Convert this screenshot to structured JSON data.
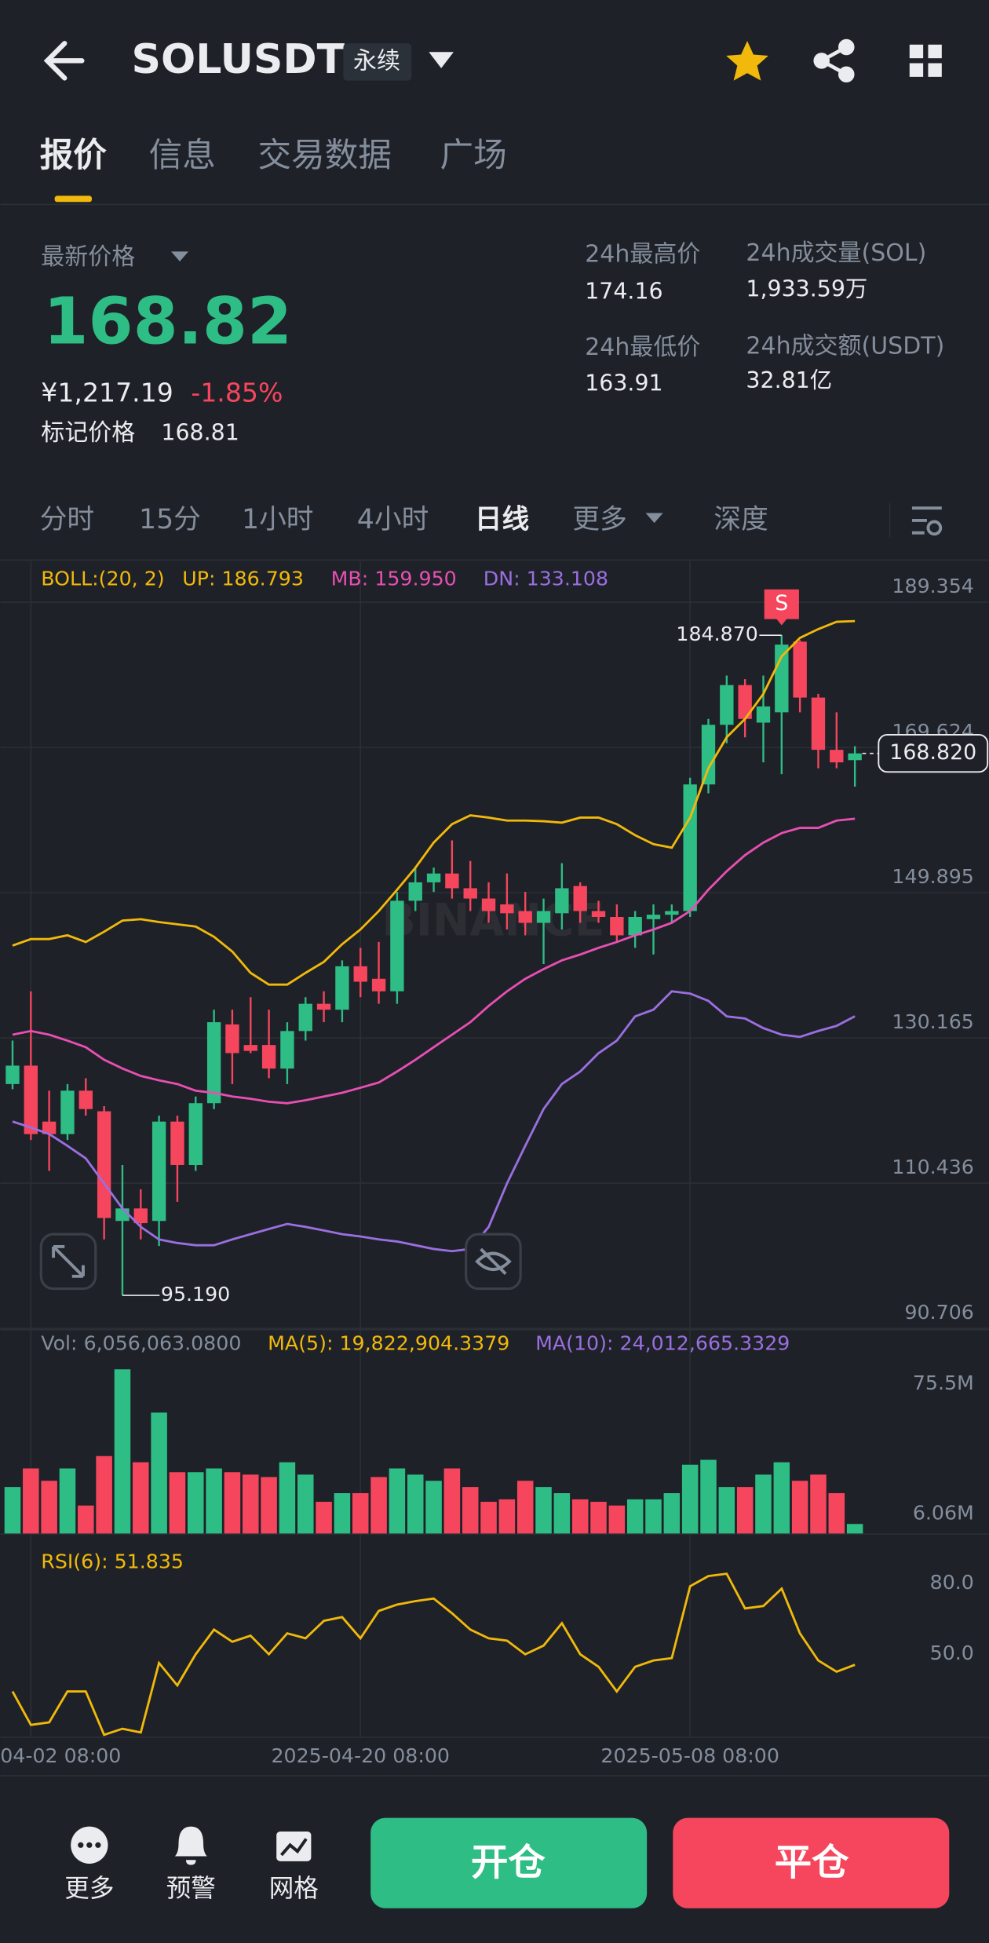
{
  "header": {
    "title": "SOLUSDT",
    "badge": "永续"
  },
  "tabs": [
    "报价",
    "信息",
    "交易数据",
    "广场"
  ],
  "stats": {
    "latest_label": "最新价格",
    "price": "168.82",
    "cny": "¥1,217.19",
    "change": "-1.85%",
    "mark_label": "标记价格",
    "mark_price": "168.81",
    "high_label": "24h最高价",
    "high": "174.16",
    "low_label": "24h最低价",
    "low": "163.91",
    "vol_label": "24h成交量(SOL)",
    "vol": "1,933.59万",
    "amt_label": "24h成交额(USDT)",
    "amt": "32.81亿"
  },
  "intervals": [
    "分时",
    "15分",
    "1小时",
    "4小时",
    "日线",
    "更多",
    "深度"
  ],
  "chart_data": {
    "type": "candlestick",
    "indicator": "BOLL:(20, 2)",
    "up_label": "UP: 186.793",
    "mb_label": "MB: 159.950",
    "dn_label": "DN: 133.108",
    "watermark": "BINANCE",
    "up_color": "#2ebd85",
    "down_color": "#f6465d",
    "boll_colors": {
      "up": "#f0b90b",
      "mb": "#e84fb3",
      "dn": "#9a6fe0"
    },
    "ylim": [
      90.706,
      189.354
    ],
    "yticks": [
      189.354,
      169.624,
      149.895,
      130.165,
      110.436,
      90.706
    ],
    "xticks": [
      {
        "value": 1,
        "label": "04-02 08:00"
      },
      {
        "value": 19,
        "label": "2025-04-20 08:00"
      },
      {
        "value": 37,
        "label": "2025-05-08 08:00"
      }
    ],
    "grid": true,
    "high_label": "184.870",
    "low_label": "95.190",
    "last_label": "168.820",
    "signal": "S",
    "candles": {
      "open": [
        123.9,
        126.4,
        118.8,
        117.1,
        123.0,
        120.2,
        105.3,
        107.0,
        105.3,
        118.8,
        112.9,
        121.3,
        132.0,
        129.2,
        129.2,
        126.0,
        131.1,
        134.8,
        134.0,
        139.9,
        138.2,
        136.5,
        148.8,
        151.3,
        152.5,
        150.5,
        149.1,
        148.3,
        147.4,
        145.8,
        147.1,
        150.8,
        147.4,
        146.6,
        144.1,
        146.3,
        146.9,
        147.4,
        164.6,
        172.7,
        178.1,
        173.0,
        174.4,
        184.0,
        176.4,
        169.3,
        167.9
      ],
      "high": [
        129.8,
        136.5,
        123.0,
        123.9,
        124.7,
        120.9,
        112.9,
        109.6,
        119.6,
        119.6,
        122.2,
        134.0,
        134.0,
        135.7,
        134.0,
        132.3,
        135.7,
        136.5,
        140.7,
        142.4,
        143.2,
        150.0,
        153.3,
        153.3,
        157.0,
        154.2,
        151.3,
        152.5,
        150.0,
        149.1,
        153.9,
        151.3,
        148.8,
        148.3,
        147.4,
        148.3,
        148.3,
        165.5,
        173.5,
        179.4,
        178.9,
        179.4,
        184.87,
        184.2,
        176.9,
        174.4,
        169.8
      ],
      "low": [
        123.2,
        116.3,
        112.1,
        116.3,
        119.6,
        102.8,
        95.19,
        102.8,
        101.9,
        107.9,
        112.1,
        120.5,
        123.9,
        128.1,
        124.7,
        123.9,
        129.8,
        132.3,
        132.3,
        135.7,
        134.8,
        134.8,
        147.4,
        150.0,
        149.1,
        147.4,
        145.8,
        144.9,
        144.1,
        140.2,
        144.9,
        145.8,
        145.8,
        143.2,
        142.4,
        141.5,
        145.8,
        146.6,
        163.4,
        170.2,
        171.0,
        167.6,
        166.0,
        174.4,
        166.8,
        166.8,
        164.3
      ],
      "close": [
        126.4,
        117.1,
        117.1,
        123.0,
        120.5,
        105.7,
        107.0,
        105.0,
        118.8,
        112.9,
        121.3,
        132.3,
        128.1,
        128.4,
        126.0,
        131.1,
        134.8,
        134.0,
        139.9,
        137.8,
        136.5,
        148.8,
        151.3,
        152.5,
        150.5,
        149.1,
        147.4,
        147.1,
        145.8,
        147.4,
        150.5,
        147.4,
        146.6,
        144.1,
        146.6,
        146.9,
        147.4,
        164.6,
        172.7,
        178.1,
        173.5,
        175.2,
        183.6,
        176.4,
        169.3,
        167.6,
        168.82
      ]
    },
    "boll": {
      "up": [
        142.7,
        143.6,
        143.6,
        144.1,
        143.2,
        144.6,
        146.1,
        146.3,
        145.9,
        145.6,
        145.3,
        143.9,
        141.9,
        139.0,
        137.4,
        137.4,
        139.0,
        140.5,
        142.9,
        144.9,
        147.4,
        150.3,
        153.3,
        156.7,
        159.2,
        160.4,
        160.1,
        159.7,
        159.7,
        159.6,
        159.4,
        160.1,
        160.1,
        159.2,
        157.7,
        156.5,
        156.0,
        160.1,
        166.8,
        171.0,
        173.5,
        176.9,
        182.0,
        184.5,
        185.7,
        186.7,
        186.793
      ],
      "mb": [
        130.6,
        131.1,
        130.6,
        129.8,
        128.9,
        127.2,
        126.0,
        125.0,
        124.4,
        123.9,
        123.0,
        122.7,
        122.2,
        121.9,
        121.5,
        121.3,
        121.7,
        122.2,
        122.7,
        123.4,
        124.1,
        125.6,
        127.2,
        128.9,
        130.6,
        132.3,
        134.5,
        136.5,
        138.2,
        139.5,
        140.7,
        141.5,
        142.4,
        143.2,
        144.1,
        144.9,
        145.8,
        147.4,
        150.3,
        152.8,
        155.0,
        156.7,
        158.0,
        158.7,
        158.7,
        159.7,
        159.95
      ],
      "dn": [
        118.8,
        118.0,
        117.1,
        115.5,
        113.8,
        110.4,
        107.0,
        104.5,
        102.8,
        102.3,
        102.0,
        102.0,
        102.8,
        103.5,
        104.2,
        104.9,
        104.5,
        104.0,
        103.5,
        103.2,
        102.8,
        102.5,
        102.0,
        101.5,
        101.2,
        101.5,
        104.5,
        110.4,
        115.5,
        120.5,
        123.9,
        125.6,
        128.1,
        129.8,
        133.1,
        134.0,
        136.5,
        136.2,
        135.2,
        133.1,
        132.8,
        131.5,
        130.6,
        130.3,
        131.1,
        131.8,
        133.108
      ]
    },
    "volume": {
      "label": "Vol: 6,056,063.0800",
      "ma5": "MA(5): 19,822,904.3379",
      "ma10": "MA(10): 24,012,665.3329",
      "ylim": [
        0,
        108470000
      ],
      "yticks": [
        {
          "value": 75500000,
          "label": "75.5M"
        },
        {
          "value": 6060000,
          "label": "6.06M"
        }
      ],
      "values": [
        25800000,
        35700000,
        29100000,
        35700000,
        15900000,
        42300000,
        88600000,
        39000000,
        65500000,
        33700000,
        33700000,
        35700000,
        33700000,
        32400000,
        31100000,
        39000000,
        32400000,
        17900000,
        22500000,
        22500000,
        31100000,
        35700000,
        32400000,
        29100000,
        35700000,
        25800000,
        17900000,
        19200000,
        29100000,
        25800000,
        22500000,
        19200000,
        17900000,
        15900000,
        19200000,
        19200000,
        22500000,
        37700000,
        40300000,
        25800000,
        25800000,
        32400000,
        39000000,
        29100000,
        32400000,
        22500000,
        6056063.08
      ]
    },
    "rsi": {
      "label": "RSI(6): 51.835",
      "color": "#f0b90b",
      "ylim": [
        22.1,
        106.3
      ],
      "yticks": [
        {
          "value": 80,
          "label": "80.0"
        },
        {
          "value": 50,
          "label": "50.0"
        }
      ],
      "values": [
        40.5,
        26.3,
        27.4,
        40.5,
        40.5,
        22.1,
        24.7,
        23.1,
        52.6,
        43.1,
        56.3,
        66.8,
        61.6,
        64.2,
        56.3,
        65.2,
        63.1,
        70.5,
        72.1,
        63.1,
        74.7,
        77.4,
        78.9,
        80.0,
        73.7,
        66.8,
        63.1,
        62.1,
        56.3,
        60.0,
        69.5,
        56.3,
        51.0,
        40.5,
        51.0,
        53.7,
        54.7,
        85.2,
        89.5,
        90.5,
        75.8,
        76.8,
        84.2,
        65.2,
        53.7,
        48.9,
        51.835
      ]
    }
  },
  "bottom": {
    "items": [
      "更多",
      "预警",
      "网格"
    ],
    "open": "开仓",
    "close": "平仓"
  }
}
